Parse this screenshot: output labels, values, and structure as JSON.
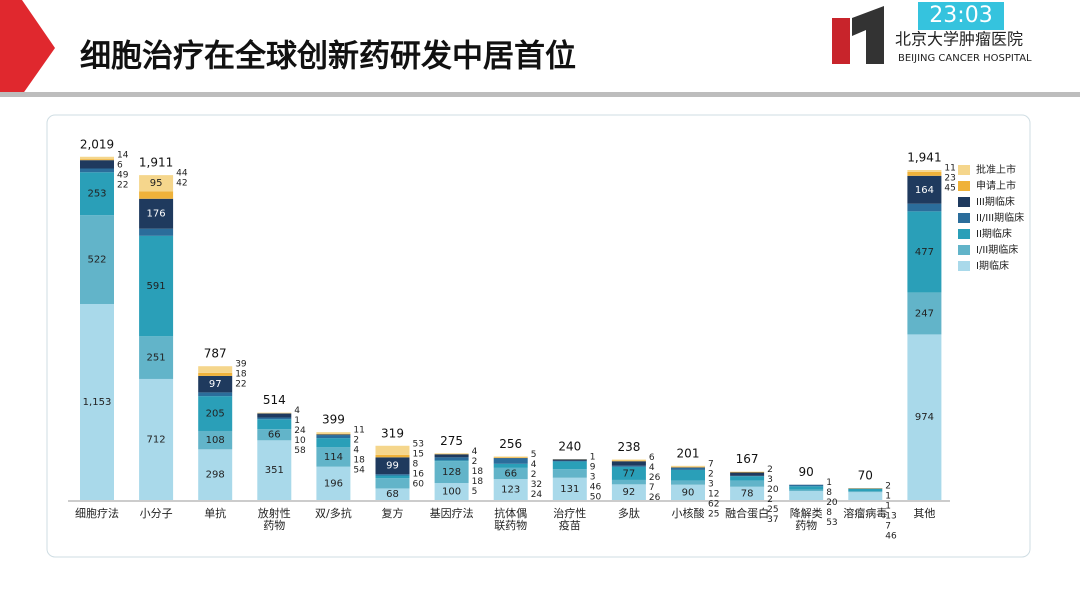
{
  "slide": {
    "title": "细胞治疗在全球创新药研发中居首位",
    "clock": "23:03",
    "logo_cn": "北京大学肿瘤医院",
    "logo_en": "BEIJING CANCER HOSPITAL"
  },
  "chart_data": {
    "type": "stacked_bar",
    "categories": [
      "细胞疗法",
      "小分子",
      "单抗",
      "放射性\n药物",
      "双/多抗",
      "复方",
      "基因疗法",
      "抗体偶\n联药物",
      "治疗性\n疫苗",
      "多肽",
      "小核酸",
      "融合蛋白",
      "降解类\n药物",
      "溶瘤病毒",
      "其他"
    ],
    "totals": [
      2019,
      1911,
      787,
      514,
      399,
      319,
      275,
      256,
      240,
      238,
      201,
      167,
      90,
      70,
      1941
    ],
    "total_labels": [
      "2,019",
      "1,911",
      "787",
      "514",
      "399",
      "319",
      "275",
      "256",
      "240",
      "238",
      "201",
      "167",
      "90",
      "70",
      "1,941"
    ],
    "series": [
      {
        "name": "I期临床",
        "color": "#a9d9ea",
        "values": [
          1153,
          712,
          298,
          351,
          196,
          68,
          100,
          123,
          131,
          92,
          90,
          78,
          53,
          46,
          974
        ],
        "value_labels": [
          "1,153",
          "712",
          "298",
          "351",
          "196",
          "68",
          "100",
          "123",
          "131",
          "92",
          "90",
          "78",
          "53",
          "46",
          "974"
        ]
      },
      {
        "name": "I/II期临床",
        "color": "#62b4c9",
        "values": [
          522,
          251,
          108,
          66,
          114,
          60,
          128,
          66,
          50,
          26,
          25,
          37,
          8,
          7,
          247
        ]
      },
      {
        "name": "II期临床",
        "color": "#2a9fb8",
        "values": [
          253,
          591,
          205,
          58,
          54,
          16,
          5,
          24,
          46,
          77,
          62,
          25,
          20,
          13,
          477
        ]
      },
      {
        "name": "II/III期临床",
        "color": "#2b6d9b",
        "values": [
          22,
          42,
          22,
          10,
          18,
          8,
          18,
          32,
          3,
          7,
          12,
          2,
          8,
          1,
          45
        ]
      },
      {
        "name": "III期临床",
        "color": "#1f3a5e",
        "values": [
          49,
          176,
          97,
          24,
          4,
          99,
          18,
          2,
          9,
          26,
          3,
          20,
          1,
          1,
          164
        ]
      },
      {
        "name": "申请上市",
        "color": "#efb23a",
        "values": [
          6,
          44,
          18,
          1,
          2,
          15,
          2,
          4,
          1,
          4,
          2,
          3,
          0,
          2,
          23
        ]
      },
      {
        "name": "批准上市",
        "color": "#f5d68c",
        "values": [
          14,
          95,
          39,
          4,
          11,
          53,
          4,
          5,
          0,
          6,
          7,
          2,
          0,
          0,
          11
        ]
      }
    ]
  }
}
